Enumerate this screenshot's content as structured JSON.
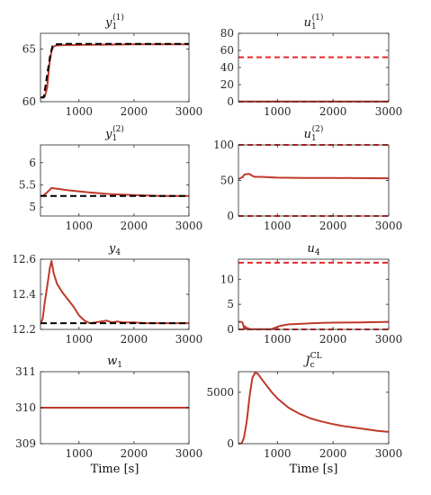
{
  "xlabel_text": "Time [s]",
  "colors": {
    "line": "#c0392b",
    "ref": "#000000",
    "bound": "#e8262a",
    "axis": "#262626"
  },
  "chart_data": [
    {
      "id": "y1-1",
      "type": "line",
      "title_main": "y",
      "title_sub": "1",
      "title_sup": "(1)",
      "xlabel": "",
      "xlim": [
        300,
        3000
      ],
      "ylim": [
        60,
        66.5
      ],
      "xticks": [
        1000,
        2000,
        3000
      ],
      "yticks": [
        60,
        65
      ],
      "series": [
        {
          "style": "solid",
          "x": [
            300,
            380,
            420,
            460,
            500,
            530,
            560,
            600,
            700,
            1000,
            2000,
            3000
          ],
          "y": [
            60.4,
            60.5,
            61.3,
            63.5,
            64.8,
            65.2,
            65.3,
            65.35,
            65.38,
            65.4,
            65.45,
            65.45
          ]
        },
        {
          "style": "dash",
          "x": [
            300,
            360,
            420,
            480,
            520,
            560,
            800,
            3000
          ],
          "y": [
            60.4,
            60.4,
            62.5,
            64.5,
            65.3,
            65.45,
            65.5,
            65.5
          ]
        }
      ]
    },
    {
      "id": "u1-1",
      "type": "line",
      "title_main": "u",
      "title_sub": "1",
      "title_sup": "(1)",
      "xlabel": "",
      "xlim": [
        300,
        3000
      ],
      "ylim": [
        0,
        80
      ],
      "xticks": [
        1000,
        2000,
        3000
      ],
      "yticks": [
        0,
        20,
        40,
        60,
        80
      ],
      "series": [
        {
          "style": "bound",
          "x": [
            300,
            3000
          ],
          "y": [
            52,
            52
          ]
        },
        {
          "style": "bound",
          "x": [
            300,
            3000
          ],
          "y": [
            0,
            0
          ]
        },
        {
          "style": "solid",
          "x": [
            300,
            3000
          ],
          "y": [
            0.2,
            0.2
          ]
        }
      ]
    },
    {
      "id": "y1-2",
      "type": "line",
      "title_main": "y",
      "title_sub": "1",
      "title_sup": "(2)",
      "xlabel": "",
      "xlim": [
        300,
        3000
      ],
      "ylim": [
        4.8,
        6.4
      ],
      "xticks": [
        1000,
        2000,
        3000
      ],
      "yticks": [
        5,
        5.5,
        6
      ],
      "series": [
        {
          "style": "solid",
          "x": [
            300,
            350,
            420,
            500,
            560,
            800,
            1200,
            1600,
            2000,
            2500,
            3000
          ],
          "y": [
            5.25,
            5.26,
            5.33,
            5.43,
            5.42,
            5.38,
            5.33,
            5.29,
            5.27,
            5.25,
            5.25
          ]
        },
        {
          "style": "dash",
          "x": [
            300,
            3000
          ],
          "y": [
            5.25,
            5.25
          ]
        }
      ]
    },
    {
      "id": "u1-2",
      "type": "line",
      "title_main": "u",
      "title_sub": "1",
      "title_sup": "(2)",
      "xlabel": "",
      "xlim": [
        300,
        3000
      ],
      "ylim": [
        0,
        100
      ],
      "xticks": [
        1000,
        2000,
        3000
      ],
      "yticks": [
        0,
        50,
        100
      ],
      "series": [
        {
          "style": "bound",
          "x": [
            300,
            3000
          ],
          "y": [
            100,
            100
          ]
        },
        {
          "style": "bound",
          "x": [
            300,
            3000
          ],
          "y": [
            0,
            0
          ]
        },
        {
          "style": "solid",
          "x": [
            300,
            330,
            380,
            400,
            450,
            500,
            560,
            600,
            700,
            1000,
            1500,
            2000,
            3000
          ],
          "y": [
            52,
            53,
            55,
            58,
            59,
            59,
            56,
            55,
            55,
            54,
            53.5,
            53.5,
            53
          ]
        }
      ]
    },
    {
      "id": "y4",
      "type": "line",
      "title_main": "y",
      "title_sub": "4",
      "title_sup": "",
      "xlabel": "",
      "xlim": [
        300,
        3000
      ],
      "ylim": [
        12.2,
        12.6
      ],
      "xticks": [
        1000,
        2000,
        3000
      ],
      "yticks": [
        12.2,
        12.4,
        12.6
      ],
      "series": [
        {
          "style": "solid",
          "x": [
            300,
            340,
            380,
            420,
            470,
            500,
            540,
            600,
            700,
            800,
            900,
            1000,
            1100,
            1200,
            1300,
            1400,
            1500,
            1600,
            1700,
            1800,
            2000,
            2200,
            2400,
            2600,
            2800,
            3000
          ],
          "y": [
            12.23,
            12.26,
            12.36,
            12.44,
            12.55,
            12.59,
            12.52,
            12.46,
            12.41,
            12.37,
            12.33,
            12.28,
            12.25,
            12.235,
            12.24,
            12.245,
            12.25,
            12.24,
            12.245,
            12.24,
            12.24,
            12.235,
            12.235,
            12.235,
            12.235,
            12.235
          ]
        },
        {
          "style": "dash",
          "x": [
            300,
            3000
          ],
          "y": [
            12.235,
            12.235
          ]
        }
      ]
    },
    {
      "id": "u4",
      "type": "line",
      "title_main": "u",
      "title_sub": "4",
      "title_sup": "",
      "xlabel": "",
      "xlim": [
        300,
        3000
      ],
      "ylim": [
        0,
        14
      ],
      "xticks": [
        1000,
        2000,
        3000
      ],
      "yticks": [
        0,
        5,
        10
      ],
      "series": [
        {
          "style": "bound",
          "x": [
            300,
            3000
          ],
          "y": [
            13.3,
            13.3
          ]
        },
        {
          "style": "bound",
          "x": [
            300,
            3000
          ],
          "y": [
            0,
            0
          ]
        },
        {
          "style": "solid",
          "x": [
            300,
            360,
            380,
            400,
            420,
            440,
            460,
            500,
            600,
            700,
            800,
            900,
            950,
            1000,
            1050,
            1100,
            1200,
            1400,
            1600,
            1800,
            2000,
            2500,
            3000
          ],
          "y": [
            1.5,
            1.5,
            1.2,
            0.2,
            0.6,
            0.1,
            0.3,
            0.05,
            0.05,
            0.05,
            0.05,
            0.05,
            0.3,
            0.5,
            0.7,
            0.8,
            1.0,
            1.1,
            1.2,
            1.3,
            1.35,
            1.4,
            1.5
          ]
        }
      ]
    },
    {
      "id": "w1",
      "type": "line",
      "title_main": "w",
      "title_sub": "1",
      "title_sup": "",
      "xlabel": "Time [s]",
      "xlim": [
        300,
        3000
      ],
      "ylim": [
        309,
        311
      ],
      "xticks": [
        1000,
        2000,
        3000
      ],
      "yticks": [
        309,
        310,
        311
      ],
      "series": [
        {
          "style": "solid",
          "x": [
            300,
            3000
          ],
          "y": [
            310,
            310
          ]
        }
      ]
    },
    {
      "id": "jcl",
      "type": "line",
      "title_main": "J",
      "title_sub": "c",
      "title_sup": "CL",
      "xlabel": "Time [s]",
      "xlim": [
        300,
        3000
      ],
      "ylim": [
        0,
        7000
      ],
      "xticks": [
        1000,
        2000,
        3000
      ],
      "yticks": [
        0,
        5000
      ],
      "series": [
        {
          "style": "solid",
          "x": [
            300,
            360,
            400,
            450,
            500,
            550,
            600,
            650,
            700,
            800,
            900,
            1000,
            1200,
            1400,
            1600,
            1800,
            2000,
            2200,
            2400,
            2600,
            2800,
            3000
          ],
          "y": [
            0,
            50,
            600,
            2200,
            4600,
            6400,
            6900,
            6800,
            6400,
            5700,
            5000,
            4400,
            3500,
            2900,
            2450,
            2150,
            1900,
            1700,
            1550,
            1400,
            1250,
            1150
          ]
        }
      ]
    }
  ]
}
